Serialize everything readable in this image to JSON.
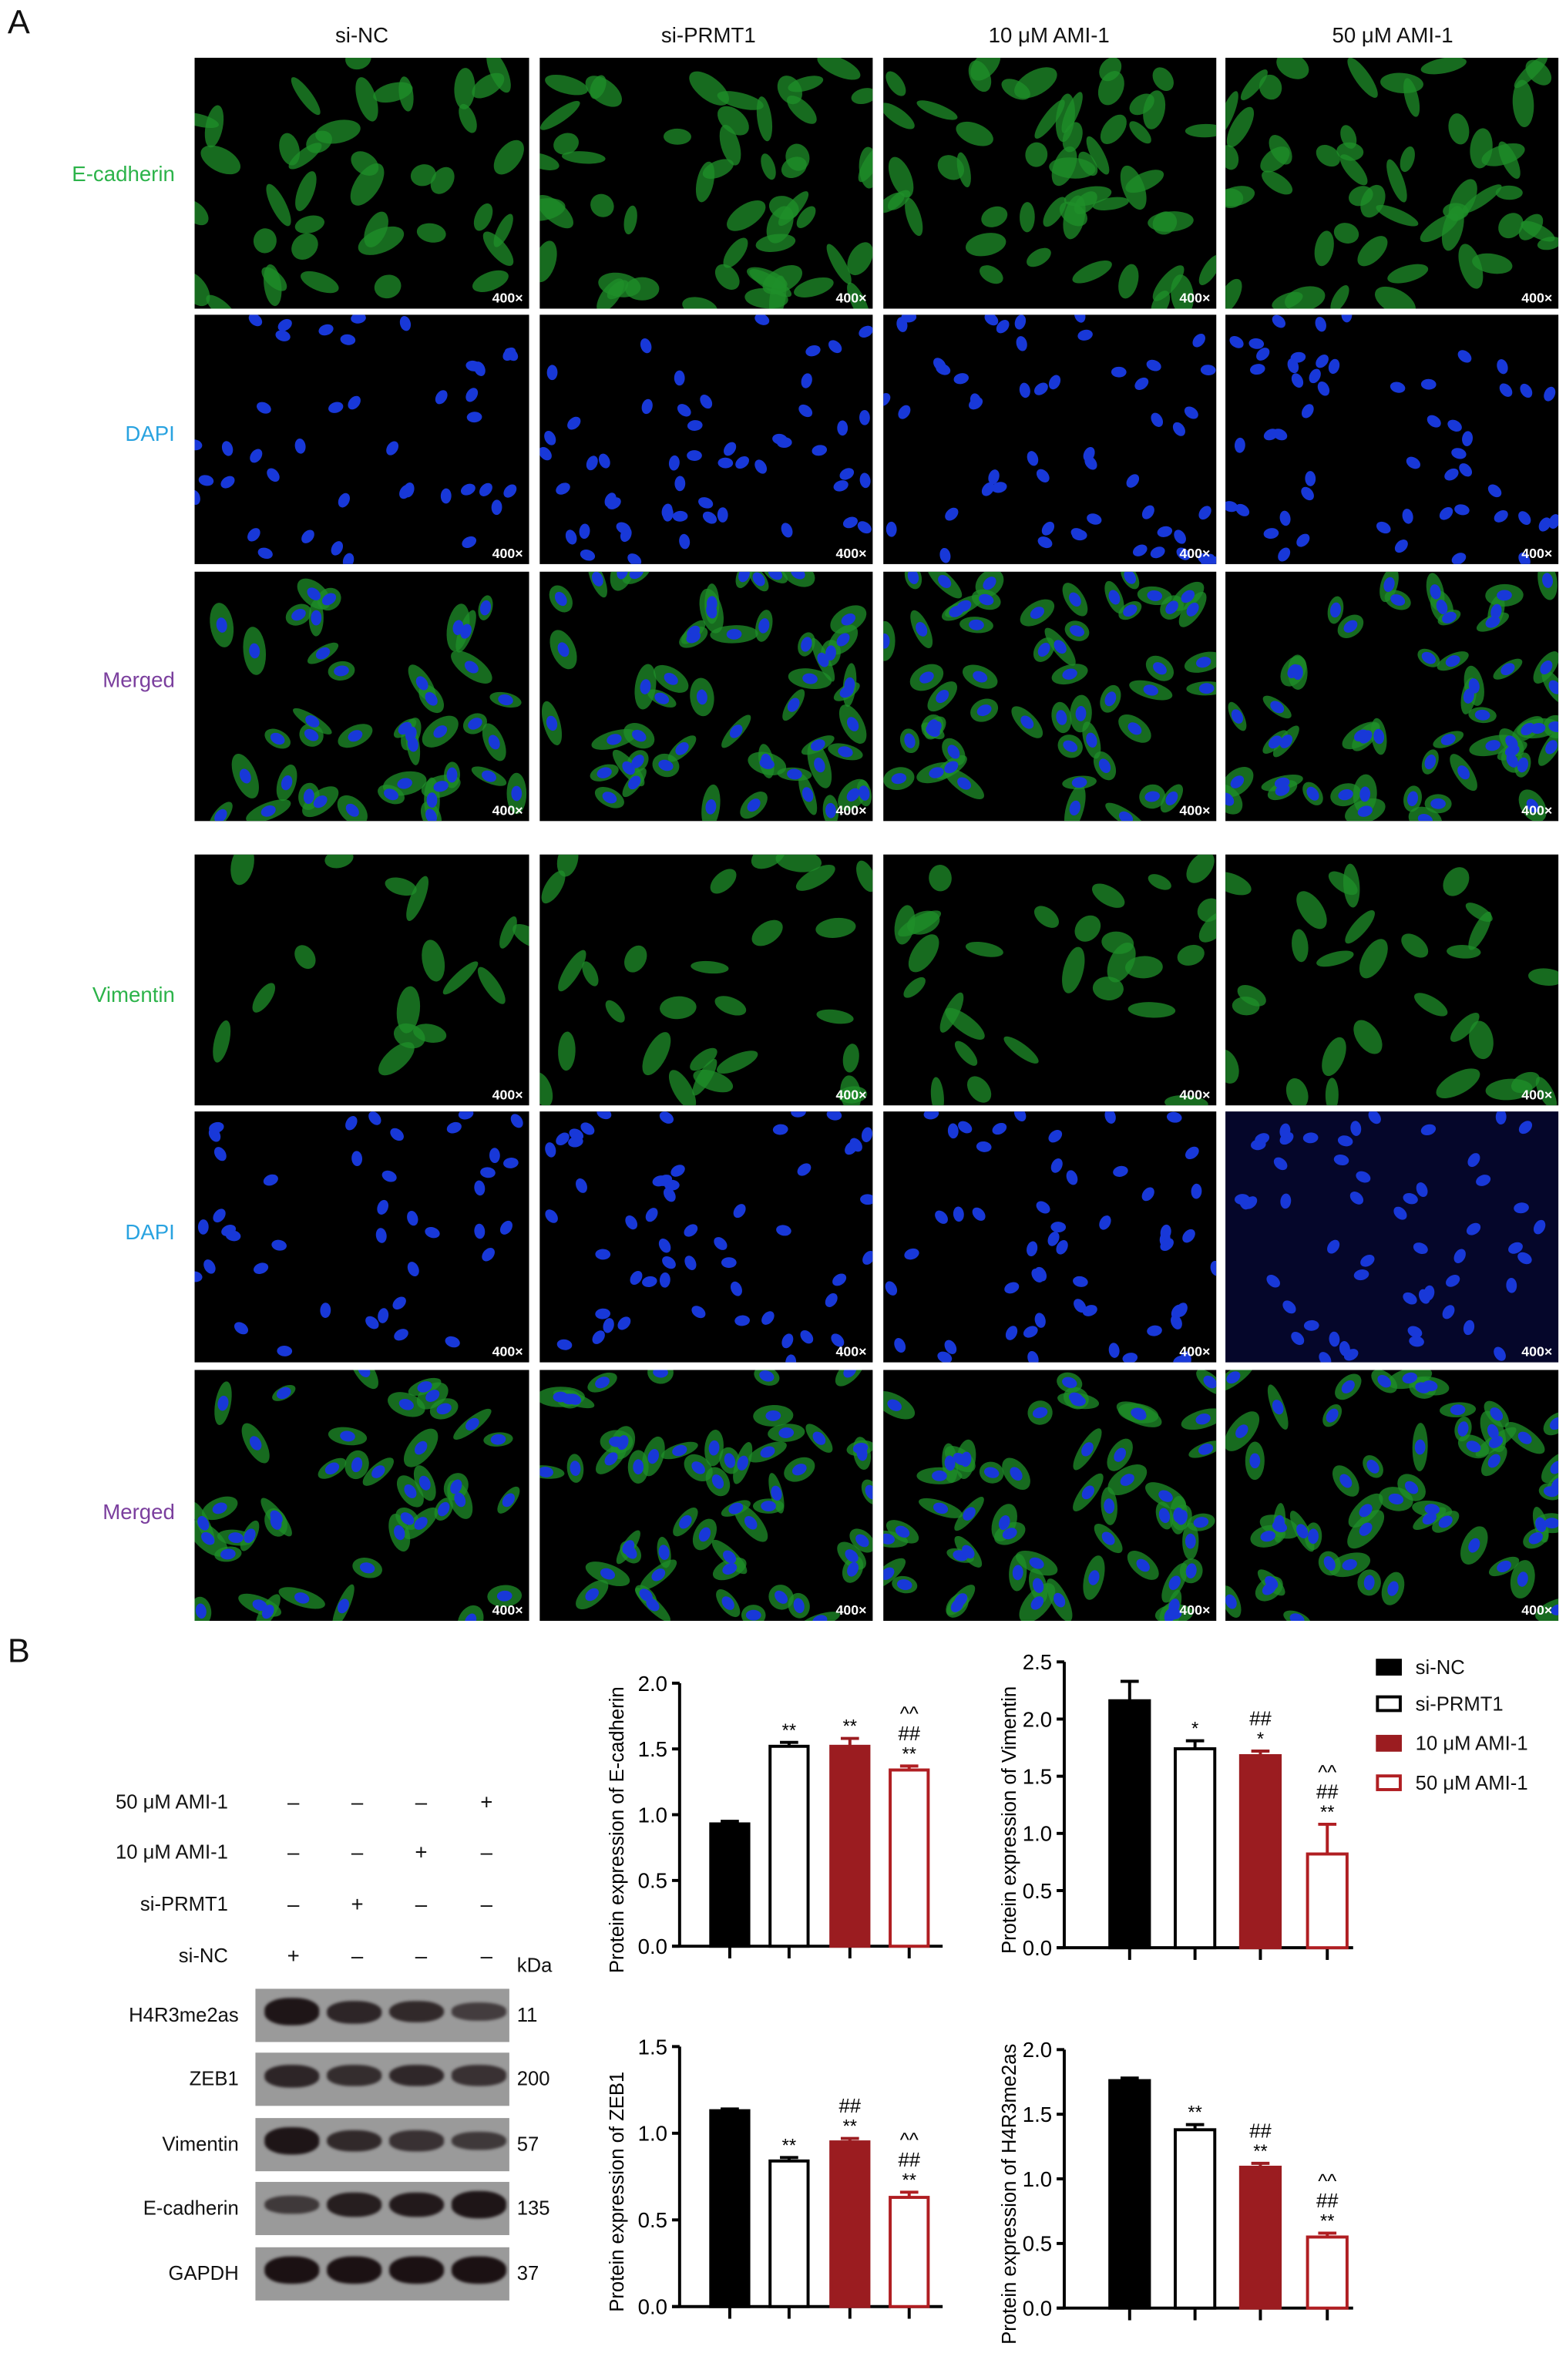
{
  "panel_a": {
    "letter": "A",
    "columns": [
      "si-NC",
      "si-PRMT1",
      "10 μM AMI-1",
      "50 μM AMI-1"
    ],
    "rows": [
      {
        "label": "E-cadherin",
        "color": "#2cb34a"
      },
      {
        "label": "DAPI",
        "color": "#29a3e0"
      },
      {
        "label": "Merged",
        "color": "#7b3f9e"
      },
      {
        "label": "Vimentin",
        "color": "#2cb34a"
      },
      {
        "label": "DAPI",
        "color": "#29a3e0"
      },
      {
        "label": "Merged",
        "color": "#7b3f9e"
      }
    ],
    "magnification": "400×"
  },
  "panel_b": {
    "letter": "B",
    "conditions": [
      {
        "label": "50 μM AMI-1",
        "signs": [
          "–",
          "–",
          "–",
          "+"
        ]
      },
      {
        "label": "10 μM AMI-1",
        "signs": [
          "–",
          "–",
          "+",
          "–"
        ]
      },
      {
        "label": "si-PRMT1",
        "signs": [
          "–",
          "+",
          "–",
          "–"
        ]
      },
      {
        "label": "si-NC",
        "signs": [
          "+",
          "–",
          "–",
          "–"
        ]
      }
    ],
    "kda_label": "kDa",
    "blots": [
      {
        "label": "H4R3me2as",
        "kda": "11",
        "intensity": [
          0.95,
          0.75,
          0.7,
          0.45
        ]
      },
      {
        "label": "ZEB1",
        "kda": "200",
        "intensity": [
          0.75,
          0.65,
          0.72,
          0.6
        ]
      },
      {
        "label": "Vimentin",
        "kda": "57",
        "intensity": [
          0.95,
          0.7,
          0.6,
          0.5
        ]
      },
      {
        "label": "E-cadherin",
        "kda": "135",
        "intensity": [
          0.5,
          0.85,
          0.9,
          0.95
        ]
      },
      {
        "label": "GAPDH",
        "kda": "37",
        "intensity": [
          1,
          1,
          1,
          1
        ]
      }
    ]
  },
  "legend": [
    {
      "name": "si-NC",
      "fill": "#000000",
      "stroke": "#000000"
    },
    {
      "name": "si-PRMT1",
      "fill": "#ffffff",
      "stroke": "#000000"
    },
    {
      "name": "10 μM AMI-1",
      "fill": "#9b1c20",
      "stroke": "#9b1c20"
    },
    {
      "name": "50 μM AMI-1",
      "fill": "#ffffff",
      "stroke": "#b01e22"
    }
  ],
  "chart_data": [
    {
      "type": "bar",
      "ylabel": "Protein expression of E-cadherin",
      "categories": [
        "si-NC",
        "si-PRMT1",
        "10 μM AMI-1",
        "50 μM AMI-1"
      ],
      "values": [
        0.93,
        1.52,
        1.52,
        1.34
      ],
      "errors": [
        0.02,
        0.03,
        0.06,
        0.03
      ],
      "annotations": [
        [],
        [
          "**"
        ],
        [
          "**"
        ],
        [
          "^^",
          "##",
          "**"
        ]
      ],
      "ylim": [
        0,
        2.0
      ],
      "yticks": [
        "0.0",
        "0.5",
        "1.0",
        "1.5",
        "2.0"
      ]
    },
    {
      "type": "bar",
      "ylabel": "Protein expression of Vimentin",
      "categories": [
        "si-NC",
        "si-PRMT1",
        "10 μM AMI-1",
        "50 μM AMI-1"
      ],
      "values": [
        2.16,
        1.74,
        1.68,
        0.82
      ],
      "errors": [
        0.17,
        0.07,
        0.04,
        0.26
      ],
      "annotations": [
        [],
        [
          "*"
        ],
        [
          "##",
          "*"
        ],
        [
          "^^",
          "##",
          "**"
        ]
      ],
      "ylim": [
        0,
        2.5
      ],
      "yticks": [
        "0.0",
        "0.5",
        "1.0",
        "1.5",
        "2.0",
        "2.5"
      ],
      "legend": "right"
    },
    {
      "type": "bar",
      "ylabel": "Protein expression of ZEB1",
      "categories": [
        "si-NC",
        "si-PRMT1",
        "10 μM AMI-1",
        "50 μM AMI-1"
      ],
      "values": [
        1.13,
        0.84,
        0.95,
        0.63
      ],
      "errors": [
        0.01,
        0.02,
        0.02,
        0.03
      ],
      "annotations": [
        [],
        [
          "**"
        ],
        [
          "##",
          "**"
        ],
        [
          "^^",
          "##",
          "**"
        ]
      ],
      "ylim": [
        0,
        1.5
      ],
      "yticks": [
        "0.0",
        "0.5",
        "1.0",
        "1.5"
      ]
    },
    {
      "type": "bar",
      "ylabel": "Protein expression of H4R3me2as",
      "categories": [
        "si-NC",
        "si-PRMT1",
        "10 μM AMI-1",
        "50 μM AMI-1"
      ],
      "values": [
        1.76,
        1.38,
        1.09,
        0.55
      ],
      "errors": [
        0.02,
        0.04,
        0.03,
        0.03
      ],
      "annotations": [
        [],
        [
          "**"
        ],
        [
          "##",
          "**"
        ],
        [
          "^^",
          "##",
          "**"
        ]
      ],
      "ylim": [
        0,
        2.0
      ],
      "yticks": [
        "0.0",
        "0.5",
        "1.0",
        "1.5",
        "2.0"
      ]
    }
  ]
}
